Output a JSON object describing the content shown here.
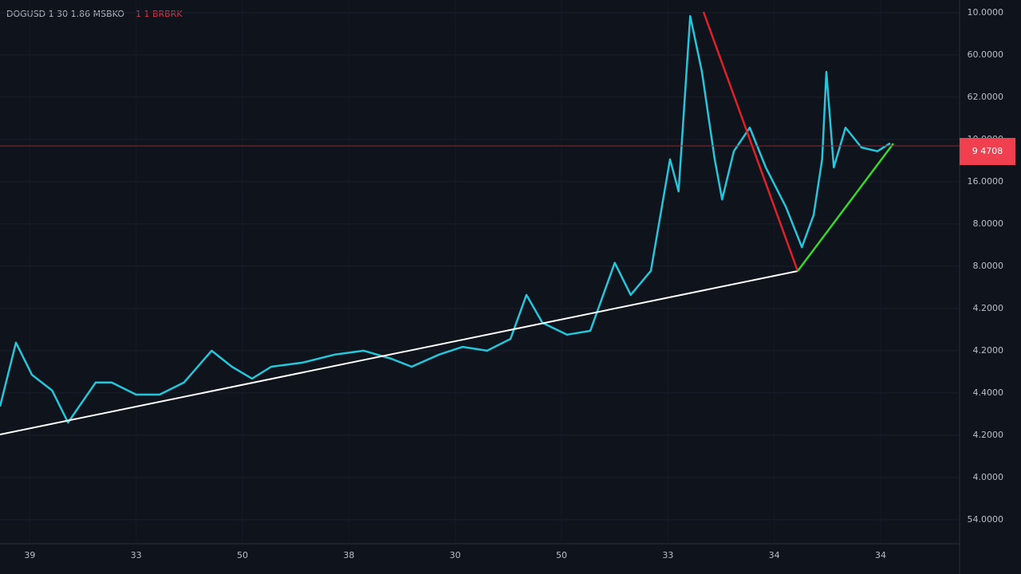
{
  "header": {
    "symbol": "DOGUSD 1 30 1.86 MSBKO",
    "status": "1 1 BRBRK"
  },
  "chart_data": {
    "type": "line",
    "price_label": "9 4708",
    "x": [
      -0.28,
      -0.13,
      0.02,
      0.21,
      0.36,
      0.62,
      0.77,
      1.0,
      1.22,
      1.45,
      1.71,
      1.9,
      2.09,
      2.27,
      2.57,
      2.87,
      3.14,
      3.4,
      3.59,
      3.85,
      4.07,
      4.3,
      4.52,
      4.67,
      4.82,
      5.05,
      5.27,
      5.5,
      5.65,
      5.84,
      6.02,
      6.1,
      6.21,
      6.32,
      6.44,
      6.51,
      6.62,
      6.77,
      6.92,
      7.11,
      7.26,
      7.37,
      7.45,
      7.49,
      7.56,
      7.67,
      7.82,
      7.97,
      8.09
    ],
    "series": [
      {
        "color": "#26c6da",
        "values": [
          3.68,
          5.19,
          4.43,
          4.06,
          3.3,
          4.25,
          4.25,
          3.96,
          3.96,
          4.25,
          5.0,
          4.62,
          4.34,
          4.62,
          4.72,
          4.91,
          5.0,
          4.81,
          4.62,
          4.91,
          5.09,
          5.0,
          5.28,
          6.32,
          5.66,
          5.38,
          5.47,
          7.08,
          6.32,
          6.89,
          9.53,
          8.77,
          12.92,
          11.6,
          9.53,
          8.58,
          9.72,
          10.28,
          9.34,
          8.4,
          7.45,
          8.21,
          9.53,
          11.6,
          9.34,
          10.28,
          9.81,
          9.72,
          9.91
        ]
      }
    ],
    "xlim": [
      -0.28,
      8.72
    ],
    "xticks": [
      {
        "value": 0,
        "label": "39"
      },
      {
        "value": 1,
        "label": "33"
      },
      {
        "value": 2,
        "label": "50"
      },
      {
        "value": 3,
        "label": "38"
      },
      {
        "value": 4,
        "label": "30"
      },
      {
        "value": 5,
        "label": "50"
      },
      {
        "value": 6,
        "label": "33"
      },
      {
        "value": 7,
        "label": "34"
      },
      {
        "value": 8,
        "label": "34"
      }
    ],
    "ylim": [
      0.47,
      13.3
    ],
    "yticks": [
      {
        "value": 1,
        "label": "54.0000"
      },
      {
        "value": 2,
        "label": "4.0000"
      },
      {
        "value": 3,
        "label": "4.2000"
      },
      {
        "value": 4,
        "label": "4.4000"
      },
      {
        "value": 5,
        "label": "4.2000"
      },
      {
        "value": 6,
        "label": "4.2000"
      },
      {
        "value": 7,
        "label": "8.0000"
      },
      {
        "value": 8,
        "label": "8.0000"
      },
      {
        "value": 9,
        "label": "16.0000"
      },
      {
        "value": 10,
        "label": "10.0000"
      },
      {
        "value": 11,
        "label": "62.0000"
      },
      {
        "value": 12,
        "label": "60.0000"
      },
      {
        "value": 13,
        "label": "10.0000"
      }
    ],
    "grid": true
  }
}
